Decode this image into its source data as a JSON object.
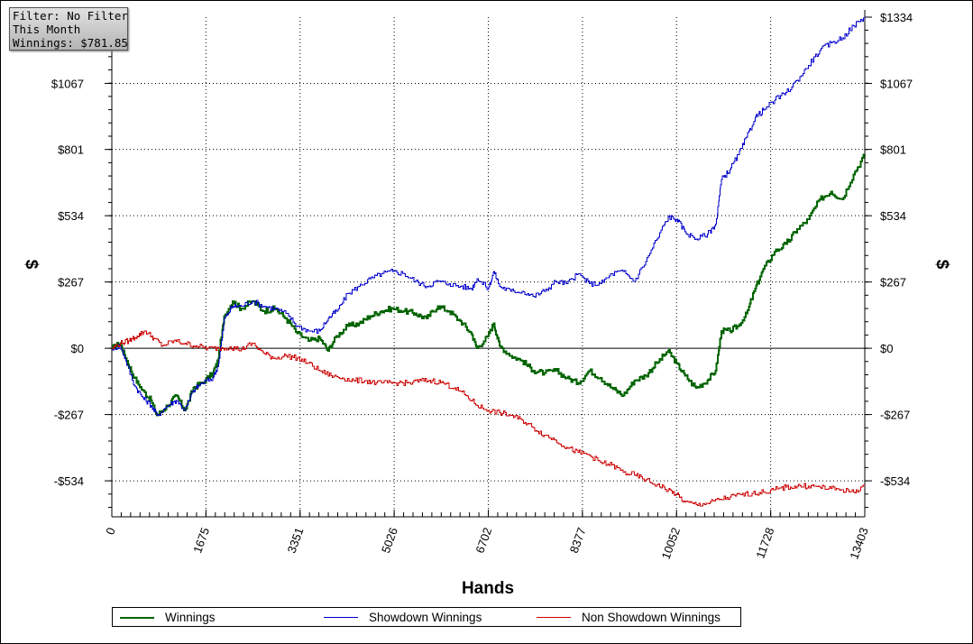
{
  "info_box": {
    "filter": "Filter: No Filter",
    "period": "This Month",
    "winnings": "Winnings: $781.85"
  },
  "chart_data": {
    "type": "line",
    "xlabel": "Hands",
    "ylabel_left": "$",
    "ylabel_right": "$",
    "xlim": [
      0,
      13403
    ],
    "ylim": [
      -650,
      1334
    ],
    "x_ticks": [
      0,
      1675,
      3351,
      5026,
      6702,
      8377,
      10052,
      11728,
      13403
    ],
    "x_tick_labels": [
      "0",
      "1675",
      "3351",
      "5026",
      "6702",
      "8377",
      "10052",
      "11728",
      "13403"
    ],
    "y_ticks": [
      1334,
      1067,
      801,
      534,
      267,
      0,
      -267,
      -534
    ],
    "y_tick_labels": [
      "$1334",
      "$1067",
      "$801",
      "$534",
      "$267",
      "$0",
      "-$267",
      "-$534"
    ],
    "grid": true,
    "legend_position": "bottom",
    "series": [
      {
        "name": "Winnings",
        "color": "#006400",
        "points": [
          [
            0,
            0
          ],
          [
            150,
            20
          ],
          [
            250,
            -40
          ],
          [
            400,
            -120
          ],
          [
            550,
            -170
          ],
          [
            700,
            -210
          ],
          [
            800,
            -270
          ],
          [
            1000,
            -230
          ],
          [
            1150,
            -190
          ],
          [
            1300,
            -250
          ],
          [
            1450,
            -160
          ],
          [
            1600,
            -140
          ],
          [
            1800,
            -100
          ],
          [
            1900,
            -40
          ],
          [
            2000,
            130
          ],
          [
            2150,
            190
          ],
          [
            2300,
            160
          ],
          [
            2500,
            190
          ],
          [
            2700,
            150
          ],
          [
            2900,
            160
          ],
          [
            3100,
            120
          ],
          [
            3300,
            60
          ],
          [
            3500,
            30
          ],
          [
            3700,
            40
          ],
          [
            3850,
            -10
          ],
          [
            4000,
            50
          ],
          [
            4200,
            90
          ],
          [
            4400,
            100
          ],
          [
            4600,
            130
          ],
          [
            4800,
            150
          ],
          [
            5000,
            160
          ],
          [
            5200,
            150
          ],
          [
            5400,
            140
          ],
          [
            5600,
            120
          ],
          [
            5800,
            170
          ],
          [
            6000,
            150
          ],
          [
            6200,
            110
          ],
          [
            6400,
            60
          ],
          [
            6500,
            0
          ],
          [
            6700,
            50
          ],
          [
            6800,
            100
          ],
          [
            6900,
            10
          ],
          [
            7100,
            -30
          ],
          [
            7300,
            -50
          ],
          [
            7500,
            -90
          ],
          [
            7700,
            -100
          ],
          [
            7900,
            -90
          ],
          [
            8100,
            -120
          ],
          [
            8300,
            -140
          ],
          [
            8500,
            -90
          ],
          [
            8700,
            -120
          ],
          [
            8900,
            -160
          ],
          [
            9100,
            -190
          ],
          [
            9300,
            -130
          ],
          [
            9500,
            -110
          ],
          [
            9700,
            -60
          ],
          [
            9900,
            -10
          ],
          [
            10050,
            -60
          ],
          [
            10200,
            -110
          ],
          [
            10400,
            -160
          ],
          [
            10600,
            -130
          ],
          [
            10750,
            -90
          ],
          [
            10850,
            70
          ],
          [
            11000,
            70
          ],
          [
            11150,
            90
          ],
          [
            11300,
            140
          ],
          [
            11450,
            240
          ],
          [
            11600,
            320
          ],
          [
            11800,
            390
          ],
          [
            12000,
            420
          ],
          [
            12200,
            480
          ],
          [
            12400,
            520
          ],
          [
            12600,
            600
          ],
          [
            12800,
            630
          ],
          [
            13000,
            600
          ],
          [
            13200,
            700
          ],
          [
            13403,
            782
          ]
        ]
      },
      {
        "name": "Showdown Winnings",
        "color": "#0000cc",
        "points": [
          [
            0,
            0
          ],
          [
            150,
            10
          ],
          [
            250,
            -50
          ],
          [
            400,
            -150
          ],
          [
            550,
            -200
          ],
          [
            700,
            -230
          ],
          [
            800,
            -270
          ],
          [
            1000,
            -230
          ],
          [
            1150,
            -210
          ],
          [
            1300,
            -250
          ],
          [
            1450,
            -170
          ],
          [
            1600,
            -140
          ],
          [
            1800,
            -120
          ],
          [
            1900,
            -60
          ],
          [
            2000,
            120
          ],
          [
            2150,
            170
          ],
          [
            2300,
            170
          ],
          [
            2500,
            190
          ],
          [
            2700,
            170
          ],
          [
            2900,
            160
          ],
          [
            3100,
            140
          ],
          [
            3300,
            90
          ],
          [
            3500,
            70
          ],
          [
            3700,
            70
          ],
          [
            3850,
            120
          ],
          [
            4000,
            150
          ],
          [
            4200,
            220
          ],
          [
            4400,
            250
          ],
          [
            4600,
            280
          ],
          [
            4800,
            300
          ],
          [
            5000,
            310
          ],
          [
            5200,
            300
          ],
          [
            5400,
            270
          ],
          [
            5600,
            250
          ],
          [
            5800,
            270
          ],
          [
            6000,
            260
          ],
          [
            6200,
            250
          ],
          [
            6400,
            240
          ],
          [
            6500,
            280
          ],
          [
            6700,
            240
          ],
          [
            6800,
            310
          ],
          [
            6900,
            250
          ],
          [
            7100,
            230
          ],
          [
            7300,
            230
          ],
          [
            7500,
            210
          ],
          [
            7700,
            230
          ],
          [
            7900,
            270
          ],
          [
            8100,
            260
          ],
          [
            8300,
            300
          ],
          [
            8500,
            260
          ],
          [
            8700,
            260
          ],
          [
            8900,
            300
          ],
          [
            9100,
            310
          ],
          [
            9300,
            270
          ],
          [
            9500,
            350
          ],
          [
            9700,
            440
          ],
          [
            9900,
            530
          ],
          [
            10050,
            520
          ],
          [
            10200,
            470
          ],
          [
            10400,
            440
          ],
          [
            10600,
            460
          ],
          [
            10750,
            500
          ],
          [
            10850,
            680
          ],
          [
            11000,
            720
          ],
          [
            11150,
            780
          ],
          [
            11300,
            850
          ],
          [
            11450,
            930
          ],
          [
            11600,
            960
          ],
          [
            11800,
            1000
          ],
          [
            12000,
            1030
          ],
          [
            12200,
            1080
          ],
          [
            12400,
            1140
          ],
          [
            12600,
            1200
          ],
          [
            12800,
            1230
          ],
          [
            13000,
            1250
          ],
          [
            13200,
            1300
          ],
          [
            13403,
            1334
          ]
        ]
      },
      {
        "name": "Non Showdown Winnings",
        "color": "#cc0000",
        "points": [
          [
            0,
            0
          ],
          [
            150,
            20
          ],
          [
            300,
            30
          ],
          [
            450,
            50
          ],
          [
            600,
            70
          ],
          [
            750,
            40
          ],
          [
            900,
            10
          ],
          [
            1100,
            30
          ],
          [
            1300,
            20
          ],
          [
            1500,
            10
          ],
          [
            1700,
            0
          ],
          [
            1900,
            0
          ],
          [
            2100,
            5
          ],
          [
            2300,
            -5
          ],
          [
            2500,
            20
          ],
          [
            2700,
            -20
          ],
          [
            2900,
            -40
          ],
          [
            3100,
            -30
          ],
          [
            3300,
            -40
          ],
          [
            3500,
            -60
          ],
          [
            3700,
            -90
          ],
          [
            3900,
            -110
          ],
          [
            4100,
            -120
          ],
          [
            4300,
            -130
          ],
          [
            4500,
            -130
          ],
          [
            4700,
            -140
          ],
          [
            4900,
            -140
          ],
          [
            5100,
            -140
          ],
          [
            5300,
            -140
          ],
          [
            5500,
            -130
          ],
          [
            5700,
            -130
          ],
          [
            5900,
            -140
          ],
          [
            6100,
            -160
          ],
          [
            6300,
            -190
          ],
          [
            6500,
            -230
          ],
          [
            6700,
            -250
          ],
          [
            6900,
            -260
          ],
          [
            7100,
            -270
          ],
          [
            7300,
            -290
          ],
          [
            7500,
            -320
          ],
          [
            7700,
            -350
          ],
          [
            7900,
            -370
          ],
          [
            8100,
            -400
          ],
          [
            8300,
            -420
          ],
          [
            8500,
            -430
          ],
          [
            8700,
            -460
          ],
          [
            8900,
            -470
          ],
          [
            9100,
            -500
          ],
          [
            9300,
            -510
          ],
          [
            9500,
            -530
          ],
          [
            9700,
            -550
          ],
          [
            9900,
            -570
          ],
          [
            10050,
            -590
          ],
          [
            10200,
            -620
          ],
          [
            10400,
            -630
          ],
          [
            10600,
            -625
          ],
          [
            10800,
            -610
          ],
          [
            11000,
            -600
          ],
          [
            11200,
            -590
          ],
          [
            11400,
            -585
          ],
          [
            11600,
            -580
          ],
          [
            11800,
            -570
          ],
          [
            12000,
            -560
          ],
          [
            12200,
            -555
          ],
          [
            12400,
            -555
          ],
          [
            12600,
            -560
          ],
          [
            12800,
            -565
          ],
          [
            13000,
            -570
          ],
          [
            13200,
            -580
          ],
          [
            13403,
            -550
          ]
        ]
      }
    ]
  },
  "legend": {
    "items": [
      "Winnings",
      "Showdown Winnings",
      "Non Showdown Winnings"
    ]
  }
}
